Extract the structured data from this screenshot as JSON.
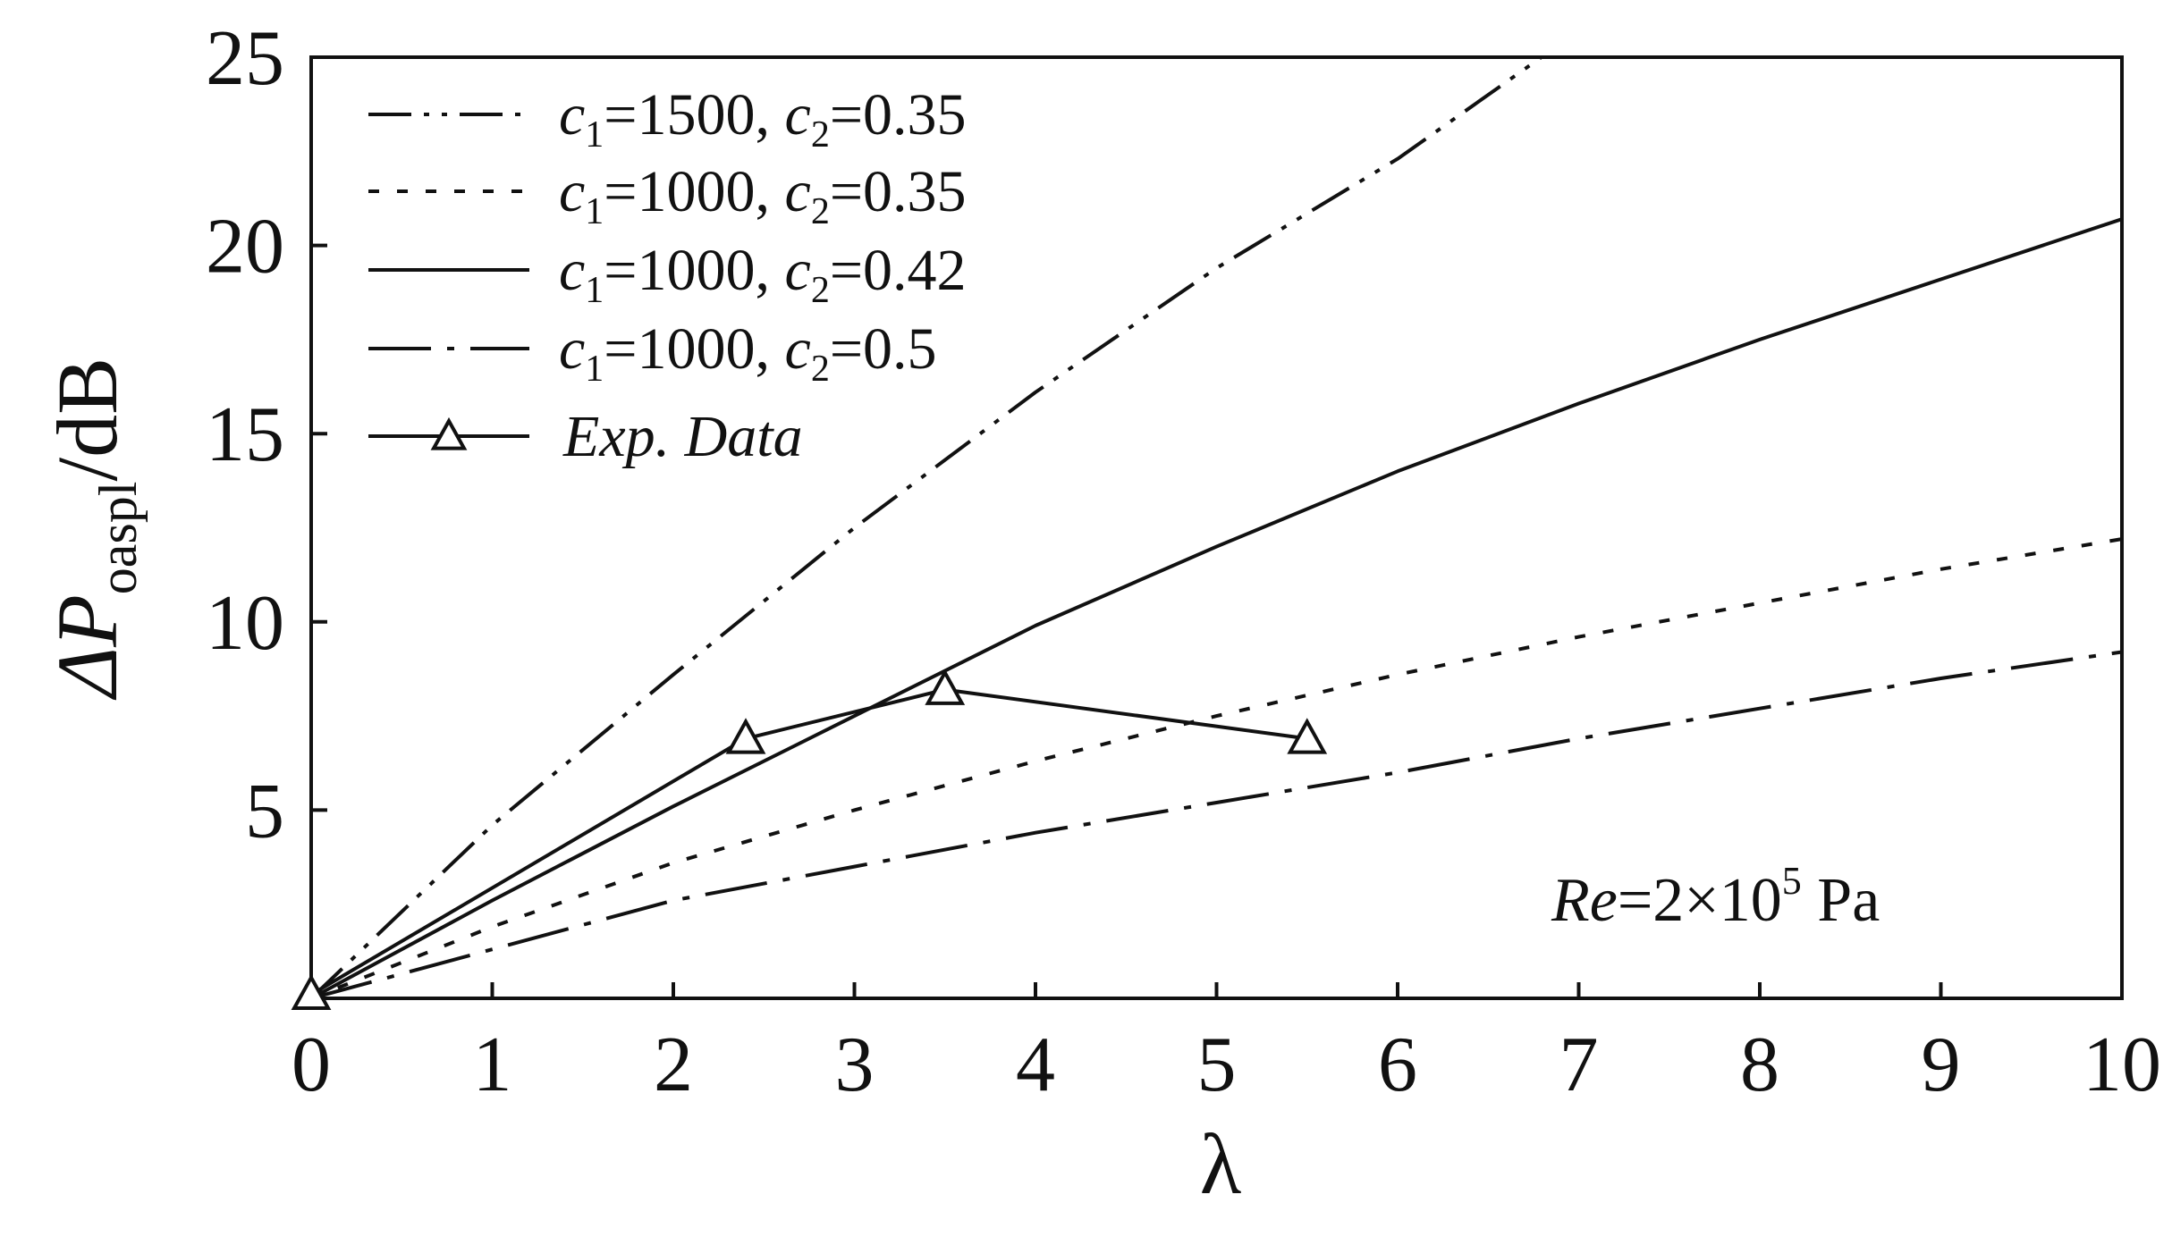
{
  "chart_data": {
    "type": "line",
    "xlabel": "λ",
    "ylabel_symbol": "ΔP",
    "ylabel_subscript": "oaspl",
    "ylabel_unit": "/dB",
    "xlim": [
      0,
      10
    ],
    "ylim": [
      0,
      25
    ],
    "x_ticks": [
      "0",
      "1",
      "2",
      "3",
      "4",
      "5",
      "6",
      "7",
      "8",
      "9",
      "10"
    ],
    "y_ticks": [
      "5",
      "10",
      "15",
      "20",
      "25"
    ],
    "grid": false,
    "legend_position": "top-left",
    "series": [
      {
        "name": "c1=1500, c2=0.35",
        "c1": "1500",
        "c2": "0.35",
        "style": "dash-dot-dot",
        "x": [
          0,
          1,
          2,
          3,
          4,
          5,
          6,
          7
        ],
        "y": [
          0,
          4.6,
          8.6,
          12.5,
          16.1,
          19.4,
          22.3,
          25.7
        ]
      },
      {
        "name": "c1=1000, c2=0.35",
        "c1": "1000",
        "c2": "0.35",
        "style": "dotted",
        "x": [
          0,
          1,
          2,
          3,
          4,
          5,
          6,
          7,
          8,
          9,
          10
        ],
        "y": [
          0,
          1.9,
          3.6,
          5.0,
          6.3,
          7.5,
          8.6,
          9.6,
          10.5,
          11.4,
          12.2
        ]
      },
      {
        "name": "c1=1000, c2=0.42",
        "c1": "1000",
        "c2": "0.42",
        "style": "solid",
        "x": [
          0,
          1,
          2,
          3,
          4,
          5,
          6,
          7,
          8,
          9,
          10
        ],
        "y": [
          0,
          2.6,
          5.1,
          7.5,
          9.9,
          12.0,
          14.0,
          15.8,
          17.5,
          19.1,
          20.7
        ]
      },
      {
        "name": "c1=1000, c2=0.5",
        "c1": "1000",
        "c2": "0.5",
        "style": "dash-dot",
        "x": [
          0,
          1,
          2,
          3,
          4,
          5,
          6,
          7,
          8,
          9,
          10
        ],
        "y": [
          0,
          1.3,
          2.6,
          3.5,
          4.4,
          5.2,
          6.0,
          6.9,
          7.7,
          8.5,
          9.2
        ]
      },
      {
        "name": "Exp. Data",
        "style": "solid-triangle",
        "x": [
          0,
          2.4,
          3.5,
          5.5
        ],
        "y": [
          0.1,
          6.9,
          8.2,
          6.9
        ]
      }
    ],
    "annotation": {
      "prefix": "Re",
      "equals": "=2×10",
      "exponent": "5",
      "unit": " Pa"
    }
  },
  "legend_labels": {
    "c1_symbol": "c",
    "c1_sub": "1",
    "c2_symbol": "c",
    "c2_sub": "2",
    "exp_label": "Exp. Data"
  }
}
